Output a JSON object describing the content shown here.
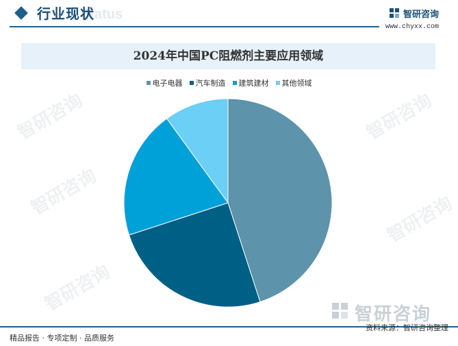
{
  "header": {
    "title": "行业现状",
    "ghost_text": "Status"
  },
  "logo": {
    "name": "智研咨询",
    "url": "www.chyxx.com"
  },
  "watermark": {
    "text": "智研咨询"
  },
  "footer": {
    "left": "精品报告 · 专项定制 · 品质服务",
    "source": "资料来源：智研咨询整理"
  },
  "colors": {
    "accent": "#1f5f8b",
    "title_bg": "#e6f1f9"
  },
  "chart_data": {
    "type": "pie",
    "title": "2024年中国PC阻燃剂主要应用领域",
    "legend_position": "top",
    "slices": [
      {
        "label": "电子电器",
        "value": 45,
        "color": "#5d93ab"
      },
      {
        "label": "汽车制造",
        "value": 25,
        "color": "#005f84"
      },
      {
        "label": "建筑建材",
        "value": 20,
        "color": "#00a0d9"
      },
      {
        "label": "其他领域",
        "value": 10,
        "color": "#6ccff5"
      }
    ]
  }
}
